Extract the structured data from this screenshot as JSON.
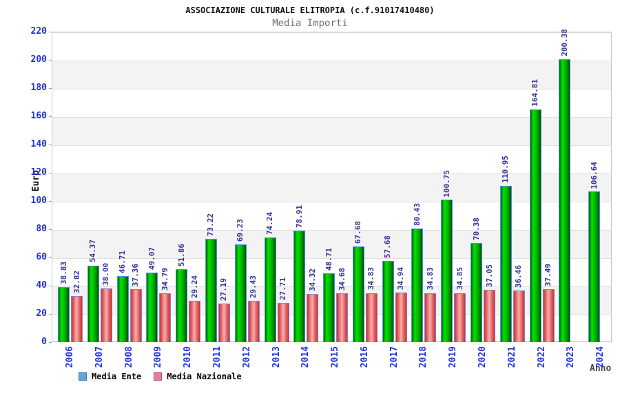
{
  "header": {
    "title": "ASSOCIAZIONE CULTURALE ELITROPIA (c.f.91017410480)",
    "subtitle": "Media Importi"
  },
  "chart_data": {
    "type": "bar",
    "title": "ASSOCIAZIONE CULTURALE ELITROPIA (c.f.91017410480)",
    "subtitle": "Media Importi",
    "xlabel": "Anno",
    "ylabel": "Euro",
    "ylim": [
      0,
      220
    ],
    "ytick_step": 20,
    "grid": "horizontal gridlines with alternating gray bands",
    "legend_position": "bottom-left",
    "value_labels": "rotated 90deg above each bar, two decimals",
    "categories": [
      "2006",
      "2007",
      "2008",
      "2009",
      "2010",
      "2011",
      "2012",
      "2013",
      "2014",
      "2015",
      "2016",
      "2017",
      "2018",
      "2019",
      "2020",
      "2021",
      "2022",
      "2023",
      "2024"
    ],
    "series": [
      {
        "name": "Media Ente",
        "bar_color": "#00cc00",
        "legend_swatch_color": "#66a3d9",
        "values": [
          38.83,
          54.37,
          46.71,
          49.07,
          51.86,
          73.22,
          69.23,
          74.24,
          78.91,
          48.71,
          67.68,
          57.68,
          80.43,
          100.75,
          70.38,
          110.95,
          164.81,
          200.38,
          106.64
        ]
      },
      {
        "name": "Media Nazionale",
        "bar_color": "#ee6666",
        "legend_swatch_color": "#e87da4",
        "values": [
          32.82,
          38.0,
          37.36,
          34.79,
          29.24,
          27.19,
          29.43,
          27.71,
          34.32,
          34.68,
          34.83,
          34.94,
          34.83,
          34.85,
          37.05,
          36.46,
          37.49,
          null,
          null
        ]
      }
    ]
  },
  "colors": {
    "ytick_label": "#2233cc",
    "xtick_label": "#2233dd",
    "value_label": "#333399",
    "band_gray": "#f3f3f3",
    "gridline": "#e0e0e0",
    "title_text": "#111111",
    "subtitle_text": "#6e6e6e"
  }
}
